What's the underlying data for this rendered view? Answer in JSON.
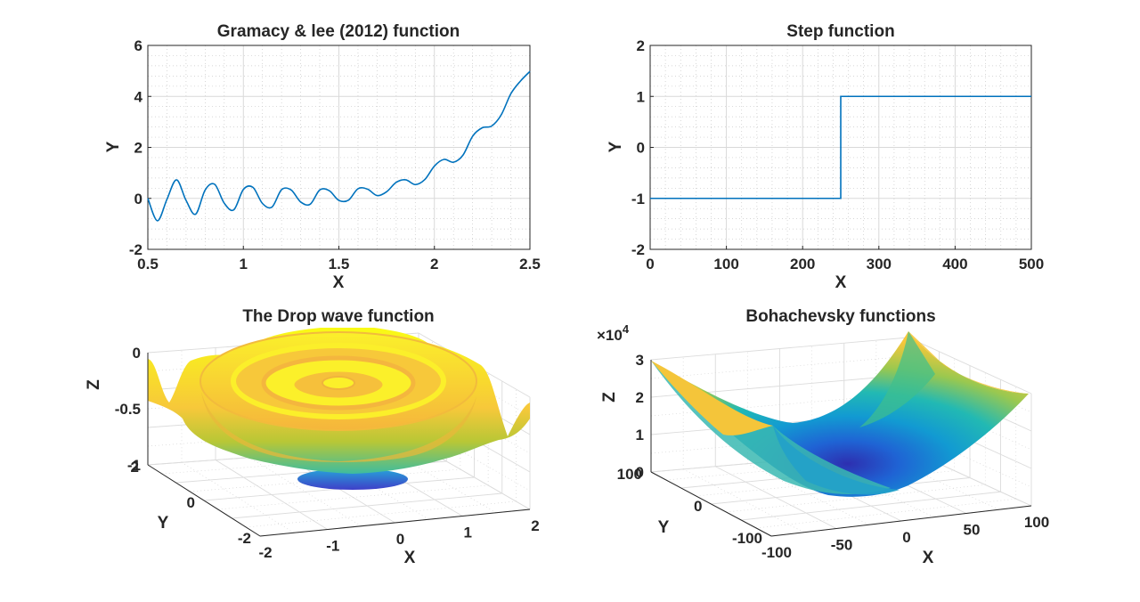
{
  "chart_data": [
    {
      "type": "line",
      "title": "Gramacy & lee (2012) function",
      "xlabel": "X",
      "ylabel": "Y",
      "xlim": [
        0.5,
        2.5
      ],
      "ylim": [
        -2,
        6
      ],
      "grid": true,
      "minor_grid": true,
      "x_ticks": [
        0.5,
        1,
        1.5,
        2,
        2.5
      ],
      "x_tick_labels": [
        "0.5",
        "1",
        "1.5",
        "2",
        "2.5"
      ],
      "y_ticks": [
        -2,
        0,
        2,
        4,
        6
      ],
      "y_tick_labels": [
        "-2",
        "0",
        "2",
        "4",
        "6"
      ],
      "line_color": "#0072bd",
      "series": [
        {
          "x": [
            0.5,
            0.55,
            0.6,
            0.65,
            0.7,
            0.75,
            0.8,
            0.85,
            0.9,
            0.95,
            1.0,
            1.05,
            1.1,
            1.15,
            1.2,
            1.25,
            1.3,
            1.35,
            1.4,
            1.45,
            1.5,
            1.55,
            1.6,
            1.65,
            1.7,
            1.75,
            1.8,
            1.85,
            1.9,
            1.95,
            2.0,
            2.05,
            2.1,
            2.15,
            2.2,
            2.25,
            2.3,
            2.35,
            2.4,
            2.45,
            2.5
          ],
          "y": [
            0.0,
            -0.88,
            -0.04,
            0.73,
            -0.08,
            -0.62,
            0.33,
            0.55,
            -0.19,
            -0.45,
            0.35,
            0.43,
            -0.2,
            -0.34,
            0.34,
            0.33,
            -0.14,
            -0.23,
            0.33,
            0.3,
            -0.08,
            -0.07,
            0.38,
            0.36,
            0.11,
            0.26,
            0.63,
            0.73,
            0.54,
            0.74,
            1.27,
            1.53,
            1.42,
            1.7,
            2.44,
            2.77,
            2.84,
            3.28,
            4.1,
            4.6,
            4.98
          ]
        }
      ]
    },
    {
      "type": "line",
      "title": "Step function",
      "xlabel": "X",
      "ylabel": "Y",
      "xlim": [
        0,
        500
      ],
      "ylim": [
        -2,
        2
      ],
      "grid": true,
      "minor_grid": true,
      "x_ticks": [
        0,
        100,
        200,
        300,
        400,
        500
      ],
      "x_tick_labels": [
        "0",
        "100",
        "200",
        "300",
        "400",
        "500"
      ],
      "y_ticks": [
        -2,
        -1,
        0,
        1,
        2
      ],
      "y_tick_labels": [
        "-2",
        "-1",
        "0",
        "1",
        "2"
      ],
      "line_color": "#0072bd",
      "series": [
        {
          "x": [
            0,
            250,
            250,
            500
          ],
          "y": [
            -1,
            -1,
            1,
            1
          ]
        }
      ]
    },
    {
      "type": "surface3d",
      "title": "The Drop wave function",
      "xlabel": "X",
      "ylabel": "Y",
      "zlabel": "Z",
      "xlim": [
        -2,
        2
      ],
      "ylim": [
        -2,
        2
      ],
      "zlim": [
        -1,
        0
      ],
      "x_tick_labels": [
        "-2",
        "-1",
        "0",
        "1",
        "2"
      ],
      "y_tick_labels": [
        "-2",
        "0",
        "2"
      ],
      "z_tick_labels": [
        "-1",
        "-0.5",
        "0"
      ],
      "colormap": "parula",
      "grid": true
    },
    {
      "type": "surface3d",
      "title": "Bohachevsky functions",
      "xlabel": "X",
      "ylabel": "Y",
      "zlabel": "Z",
      "xlim": [
        -100,
        100
      ],
      "ylim": [
        -100,
        100
      ],
      "zlim": [
        0,
        30000
      ],
      "x_tick_labels": [
        "-100",
        "-50",
        "0",
        "50",
        "100"
      ],
      "y_tick_labels": [
        "-100",
        "0",
        "100"
      ],
      "z_tick_labels": [
        "0",
        "1",
        "2",
        "3"
      ],
      "z_exponent_base": "×10",
      "z_exponent_power": "4",
      "colormap": "parula",
      "grid": true
    }
  ],
  "colors": {
    "line": "#0072bd",
    "axis": "#262626",
    "grid": "#d9d9d9",
    "parula_low": "#3e26a8",
    "parula_mid": "#13beb8",
    "parula_high": "#f9fb15"
  }
}
